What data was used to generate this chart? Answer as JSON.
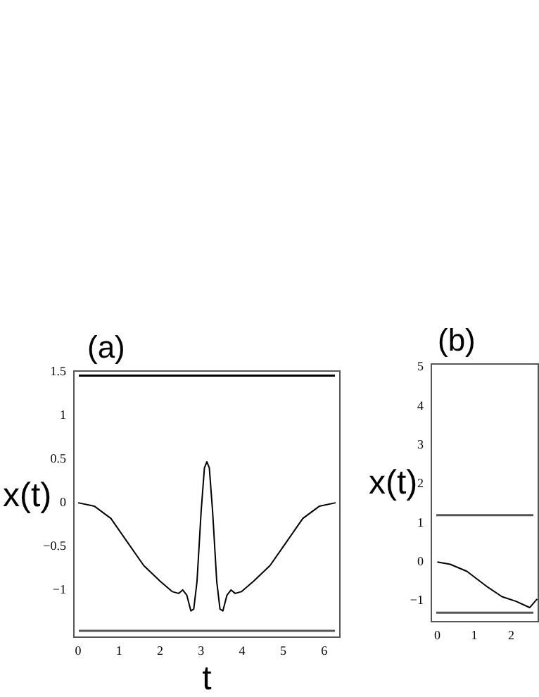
{
  "chart_data": [
    {
      "type": "line",
      "title": "(a)",
      "xlabel": "t",
      "ylabel": "x(t)",
      "marker": "none",
      "xlim": [
        -0.12,
        6.4
      ],
      "ylim": [
        -1.55,
        1.52
      ],
      "xticks": [
        0,
        1,
        2,
        3,
        4,
        5,
        6
      ],
      "yticks": [
        -1,
        -0.5,
        0,
        0.5,
        1,
        1.5
      ],
      "ref_lines": [
        {
          "axis": "y",
          "value": 1.46,
          "color": "#000000"
        },
        {
          "axis": "y",
          "value": -1.47,
          "color": "#555555"
        }
      ],
      "series": [
        {
          "color": "#000000",
          "x": [
            0,
            0.4,
            0.8,
            1.2,
            1.6,
            2.0,
            2.3,
            2.45,
            2.55,
            2.65,
            2.75,
            2.82,
            2.9,
            3.0,
            3.08,
            3.14,
            3.2,
            3.28,
            3.38,
            3.46,
            3.53,
            3.63,
            3.73,
            3.83,
            3.98,
            4.28,
            4.68,
            5.08,
            5.48,
            5.88,
            6.28
          ],
          "values": [
            0,
            -0.04,
            -0.18,
            -0.45,
            -0.72,
            -0.9,
            -1.02,
            -1.04,
            -1.0,
            -1.06,
            -1.24,
            -1.22,
            -0.9,
            -0.1,
            0.4,
            0.47,
            0.4,
            -0.1,
            -0.9,
            -1.22,
            -1.24,
            -1.06,
            -1.0,
            -1.04,
            -1.02,
            -0.9,
            -0.72,
            -0.45,
            -0.18,
            -0.04,
            0
          ]
        }
      ]
    },
    {
      "type": "line",
      "title": "(b)",
      "ylabel": "x(t)",
      "marker": "none",
      "xlim": [
        -0.18,
        2.75
      ],
      "ylim": [
        -1.55,
        5.1
      ],
      "xticks": [
        0,
        1,
        2
      ],
      "yticks": [
        -1,
        0,
        1,
        2,
        3,
        4,
        5
      ],
      "ref_lines": [
        {
          "axis": "y",
          "value": 1.2,
          "color": "#555555"
        },
        {
          "axis": "y",
          "value": -1.3,
          "color": "#555555"
        }
      ],
      "series": [
        {
          "color": "#000000",
          "x": [
            0,
            0.35,
            0.8,
            1.37,
            1.75,
            2.13,
            2.5,
            2.7
          ],
          "values": [
            0,
            -0.06,
            -0.24,
            -0.65,
            -0.89,
            -1.01,
            -1.17,
            -0.95
          ]
        }
      ]
    }
  ]
}
